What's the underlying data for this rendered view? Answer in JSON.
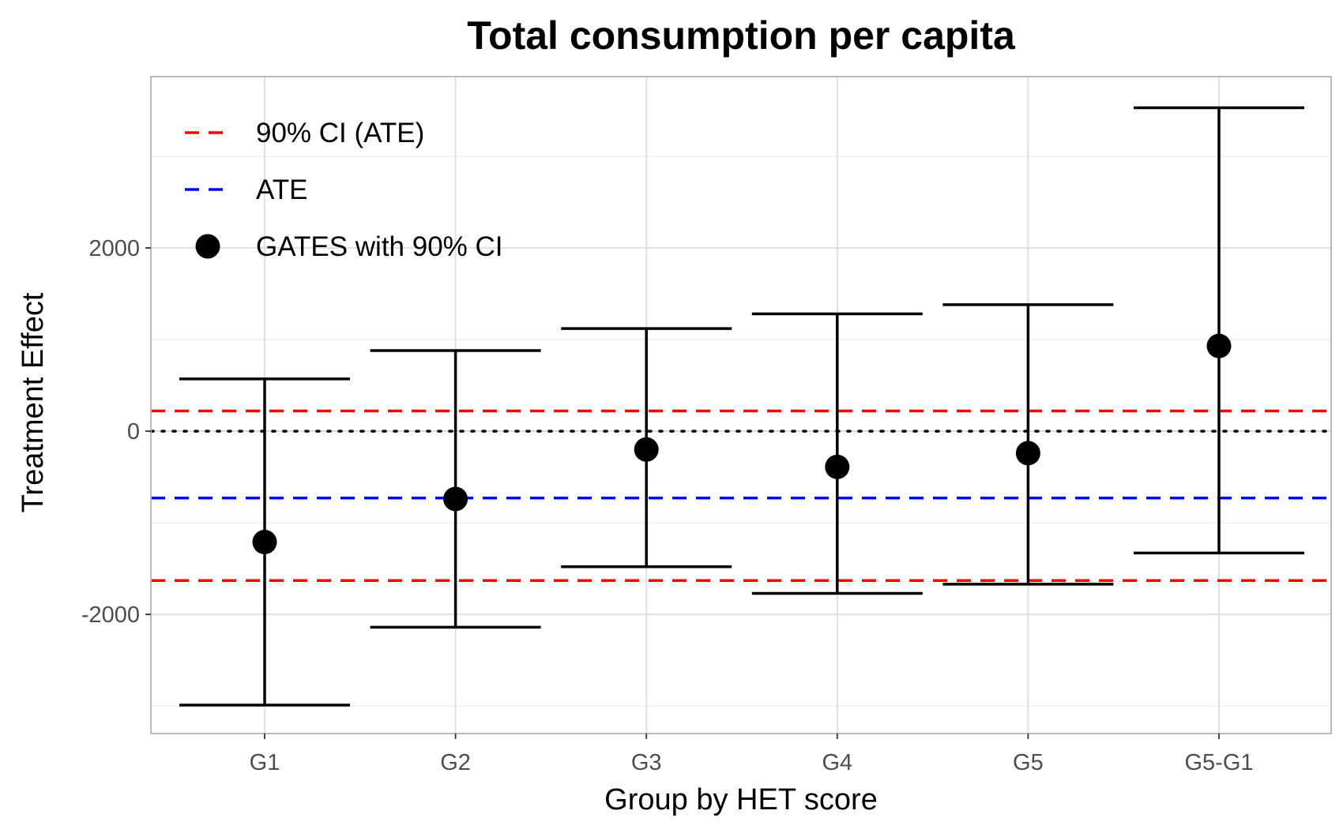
{
  "chart_data": {
    "type": "scatter",
    "title": "Total consumption per capita",
    "xlabel": "Group by HET score",
    "ylabel": "Treatment Effect",
    "categories": [
      "G1",
      "G2",
      "G3",
      "G4",
      "G5",
      "G5-G1"
    ],
    "ylim": [
      -3300,
      3870
    ],
    "y_ticks": [
      -2000,
      0,
      2000
    ],
    "y_tick_labels": [
      "-2000",
      "0",
      "2000"
    ],
    "grid": true,
    "legend_position": "top-left",
    "series": [
      {
        "name": "GATES with 90% CI",
        "color": "#000000",
        "points": [
          {
            "x": "G1",
            "estimate": -1210,
            "lower": -2990,
            "upper": 570
          },
          {
            "x": "G2",
            "estimate": -740,
            "lower": -2140,
            "upper": 880
          },
          {
            "x": "G3",
            "estimate": -200,
            "lower": -1480,
            "upper": 1120
          },
          {
            "x": "G4",
            "estimate": -390,
            "lower": -1770,
            "upper": 1280
          },
          {
            "x": "G5",
            "estimate": -240,
            "lower": -1670,
            "upper": 1380
          },
          {
            "x": "G5-G1",
            "estimate": 930,
            "lower": -1330,
            "upper": 3530
          }
        ]
      }
    ],
    "reference_lines": [
      {
        "name": "90% CI (ATE)",
        "values": [
          220,
          -1630
        ],
        "color": "#ff0000",
        "style": "dashed"
      },
      {
        "name": "ATE",
        "values": [
          -730
        ],
        "color": "#0000ff",
        "style": "dashed"
      },
      {
        "name": "zero",
        "values": [
          0
        ],
        "color": "#000000",
        "style": "dotted"
      }
    ],
    "legend": [
      {
        "label": "90% CI (ATE)",
        "kind": "dashed-line",
        "color": "#ff0000"
      },
      {
        "label": "ATE",
        "kind": "dashed-line",
        "color": "#0000ff"
      },
      {
        "label": "GATES with 90% CI",
        "kind": "point",
        "color": "#000000"
      }
    ]
  }
}
